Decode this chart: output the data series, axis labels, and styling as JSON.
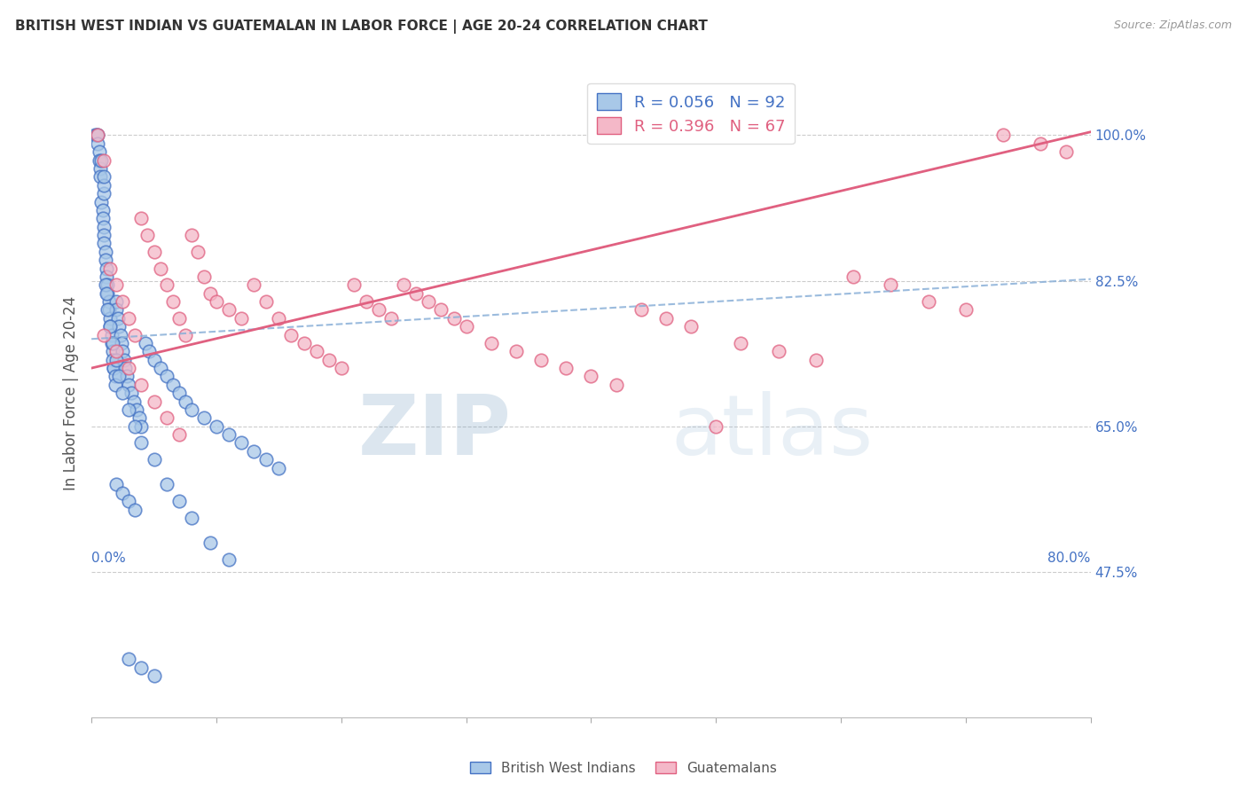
{
  "title": "BRITISH WEST INDIAN VS GUATEMALAN IN LABOR FORCE | AGE 20-24 CORRELATION CHART",
  "source": "Source: ZipAtlas.com",
  "ylabel": "In Labor Force | Age 20-24",
  "x_min": 0.0,
  "x_max": 0.8,
  "y_min": 0.3,
  "y_max": 1.08,
  "y_tick_vals": [
    0.475,
    0.65,
    0.825,
    1.0
  ],
  "y_tick_labels": [
    "47.5%",
    "65.0%",
    "82.5%",
    "100.0%"
  ],
  "blue_fill": "#a8c8e8",
  "blue_edge": "#4472c4",
  "pink_fill": "#f4b8c8",
  "pink_edge": "#e06080",
  "trend_blue": "#8ab0d8",
  "trend_pink": "#e06080",
  "R_blue": 0.056,
  "N_blue": 92,
  "R_pink": 0.396,
  "N_pink": 67,
  "legend_label_blue": "British West Indians",
  "legend_label_pink": "Guatemalans",
  "watermark_zip": "ZIP",
  "watermark_atlas": "atlas",
  "background_color": "#ffffff",
  "grid_color": "#cccccc",
  "axis_label_color": "#4472c4",
  "title_color": "#333333",
  "blue_trend_intercept": 0.755,
  "blue_trend_slope": 0.09,
  "pink_trend_intercept": 0.72,
  "pink_trend_slope": 0.355,
  "blue_x": [
    0.003,
    0.004,
    0.005,
    0.005,
    0.006,
    0.006,
    0.007,
    0.007,
    0.008,
    0.008,
    0.009,
    0.009,
    0.01,
    0.01,
    0.01,
    0.011,
    0.011,
    0.012,
    0.012,
    0.013,
    0.013,
    0.014,
    0.014,
    0.015,
    0.015,
    0.016,
    0.016,
    0.017,
    0.017,
    0.018,
    0.018,
    0.019,
    0.019,
    0.02,
    0.02,
    0.021,
    0.022,
    0.023,
    0.024,
    0.025,
    0.026,
    0.027,
    0.028,
    0.03,
    0.032,
    0.034,
    0.036,
    0.038,
    0.04,
    0.043,
    0.046,
    0.05,
    0.055,
    0.06,
    0.065,
    0.07,
    0.075,
    0.08,
    0.09,
    0.1,
    0.11,
    0.12,
    0.13,
    0.14,
    0.15,
    0.01,
    0.01,
    0.01,
    0.011,
    0.012,
    0.013,
    0.015,
    0.017,
    0.02,
    0.022,
    0.025,
    0.03,
    0.035,
    0.04,
    0.05,
    0.06,
    0.07,
    0.08,
    0.095,
    0.11,
    0.03,
    0.04,
    0.05,
    0.02,
    0.025,
    0.03,
    0.035
  ],
  "blue_y": [
    1.0,
    1.0,
    1.0,
    0.99,
    0.98,
    0.97,
    0.96,
    0.95,
    0.97,
    0.92,
    0.91,
    0.9,
    0.89,
    0.88,
    0.87,
    0.86,
    0.85,
    0.84,
    0.83,
    0.82,
    0.81,
    0.8,
    0.79,
    0.78,
    0.77,
    0.76,
    0.75,
    0.74,
    0.73,
    0.72,
    0.72,
    0.71,
    0.7,
    0.8,
    0.79,
    0.78,
    0.77,
    0.76,
    0.75,
    0.74,
    0.73,
    0.72,
    0.71,
    0.7,
    0.69,
    0.68,
    0.67,
    0.66,
    0.65,
    0.75,
    0.74,
    0.73,
    0.72,
    0.71,
    0.7,
    0.69,
    0.68,
    0.67,
    0.66,
    0.65,
    0.64,
    0.63,
    0.62,
    0.61,
    0.6,
    0.93,
    0.94,
    0.95,
    0.82,
    0.81,
    0.79,
    0.77,
    0.75,
    0.73,
    0.71,
    0.69,
    0.67,
    0.65,
    0.63,
    0.61,
    0.58,
    0.56,
    0.54,
    0.51,
    0.49,
    0.37,
    0.36,
    0.35,
    0.58,
    0.57,
    0.56,
    0.55
  ],
  "pink_x": [
    0.005,
    0.01,
    0.015,
    0.02,
    0.025,
    0.03,
    0.035,
    0.04,
    0.045,
    0.05,
    0.055,
    0.06,
    0.065,
    0.07,
    0.075,
    0.08,
    0.085,
    0.09,
    0.095,
    0.1,
    0.11,
    0.12,
    0.13,
    0.14,
    0.15,
    0.16,
    0.17,
    0.18,
    0.19,
    0.2,
    0.21,
    0.22,
    0.23,
    0.24,
    0.25,
    0.26,
    0.27,
    0.28,
    0.29,
    0.3,
    0.32,
    0.34,
    0.36,
    0.38,
    0.4,
    0.42,
    0.44,
    0.46,
    0.48,
    0.5,
    0.52,
    0.55,
    0.58,
    0.61,
    0.64,
    0.67,
    0.7,
    0.73,
    0.76,
    0.78,
    0.01,
    0.02,
    0.03,
    0.04,
    0.05,
    0.06,
    0.07
  ],
  "pink_y": [
    1.0,
    0.97,
    0.84,
    0.82,
    0.8,
    0.78,
    0.76,
    0.9,
    0.88,
    0.86,
    0.84,
    0.82,
    0.8,
    0.78,
    0.76,
    0.88,
    0.86,
    0.83,
    0.81,
    0.8,
    0.79,
    0.78,
    0.82,
    0.8,
    0.78,
    0.76,
    0.75,
    0.74,
    0.73,
    0.72,
    0.82,
    0.8,
    0.79,
    0.78,
    0.82,
    0.81,
    0.8,
    0.79,
    0.78,
    0.77,
    0.75,
    0.74,
    0.73,
    0.72,
    0.71,
    0.7,
    0.79,
    0.78,
    0.77,
    0.65,
    0.75,
    0.74,
    0.73,
    0.83,
    0.82,
    0.8,
    0.79,
    1.0,
    0.99,
    0.98,
    0.76,
    0.74,
    0.72,
    0.7,
    0.68,
    0.66,
    0.64
  ]
}
